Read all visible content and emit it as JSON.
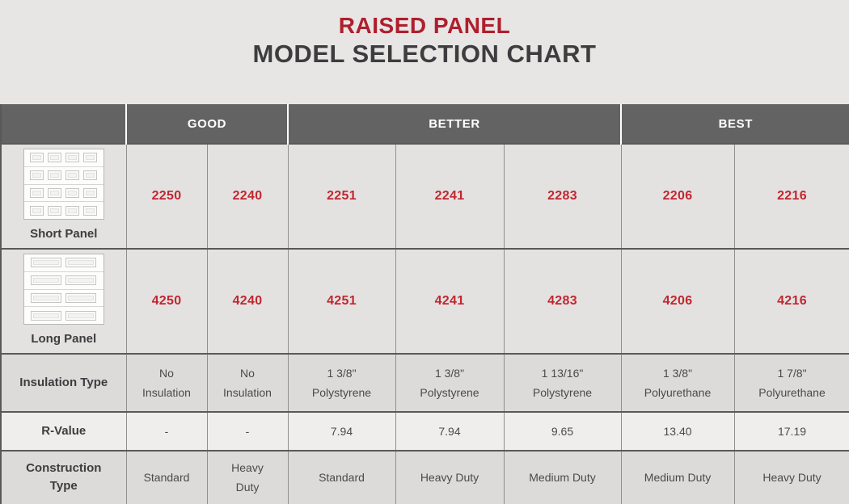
{
  "colors": {
    "accent_red": "#ae1f2d",
    "model_number_red": "#c2262f",
    "header_bg": "#636363",
    "header_text": "#ffffff",
    "page_bg": "#e7e6e5",
    "cell_bg": "#e3e2e1",
    "spec_row_bg": "#dcdbda",
    "rvalue_row_bg": "#efeeec",
    "dark_text": "#3d3d3f"
  },
  "title": {
    "line1": "RAISED PANEL",
    "line2": "MODEL SELECTION CHART"
  },
  "table": {
    "tier_headers": [
      {
        "label": "GOOD"
      },
      {
        "label": "BETTER"
      },
      {
        "label": "BEST"
      }
    ],
    "model_rows": [
      {
        "panel_label": "Short Panel",
        "door": {
          "rows": 4,
          "panels_per_row": 4,
          "style": "short"
        },
        "models": [
          "2250",
          "2240",
          "2251",
          "2241",
          "2283",
          "2206",
          "2216"
        ]
      },
      {
        "panel_label": "Long Panel",
        "door": {
          "rows": 4,
          "panels_per_row": 2,
          "style": "long"
        },
        "models": [
          "4250",
          "4240",
          "4251",
          "4241",
          "4283",
          "4206",
          "4216"
        ]
      }
    ],
    "spec_rows": [
      {
        "label": "Insulation Type",
        "values": [
          "No Insulation",
          "No Insulation",
          "1 3/8\" Polystyrene",
          "1 3/8\" Polystyrene",
          "1 13/16\" Polystyrene",
          "1 3/8\" Polyurethane",
          "1 7/8\" Polyurethane"
        ]
      },
      {
        "label": "R-Value",
        "values": [
          "-",
          "-",
          "7.94",
          "7.94",
          "9.65",
          "13.40",
          "17.19"
        ]
      },
      {
        "label": "Construction Type",
        "values": [
          "Standard",
          "Heavy Duty",
          "Standard",
          "Heavy Duty",
          "Medium Duty",
          "Medium Duty",
          "Heavy Duty"
        ]
      }
    ]
  }
}
